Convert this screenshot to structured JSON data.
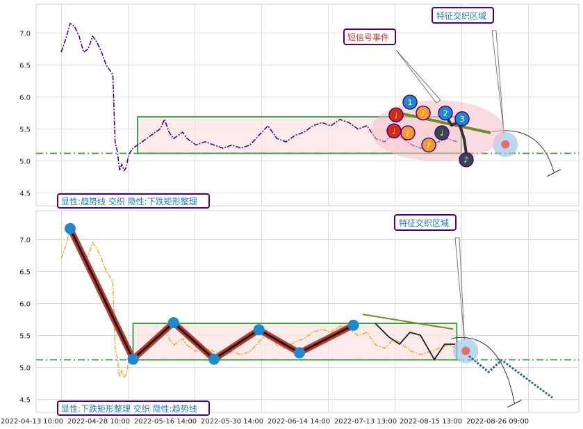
{
  "chart_data": [
    {
      "type": "line",
      "panel": "top",
      "legend_label": "显性:趋势线 交织 隐性:下跌矩形整理",
      "annotations": [
        "特征交织区域",
        "短信号事件"
      ],
      "ylim": [
        4.3,
        7.45
      ],
      "yticks": [
        "7.0",
        "6.5",
        "6.0",
        "5.5",
        "5.0",
        "4.5"
      ],
      "grid": true,
      "support_level": 5.12,
      "rectangle": {
        "x0": 0.17,
        "x1": 0.89,
        "y0": 5.12,
        "y1": 5.69
      },
      "series": [
        {
          "color": "#4b0082",
          "style": "dash-dot",
          "x": [
            0.0,
            0.01,
            0.02,
            0.03,
            0.04,
            0.05,
            0.06,
            0.07,
            0.08,
            0.09,
            0.1,
            0.11,
            0.115,
            0.12,
            0.125,
            0.13,
            0.135,
            0.14,
            0.145,
            0.15,
            0.16,
            0.17,
            0.18,
            0.19,
            0.2,
            0.21,
            0.22,
            0.23,
            0.24,
            0.25,
            0.26,
            0.27,
            0.28,
            0.29,
            0.3,
            0.32,
            0.34,
            0.36,
            0.38,
            0.4,
            0.42,
            0.44,
            0.46,
            0.48,
            0.5,
            0.52,
            0.54,
            0.56,
            0.58,
            0.6,
            0.62,
            0.64,
            0.66,
            0.68,
            0.7,
            0.72,
            0.74,
            0.76,
            0.78,
            0.8,
            0.82,
            0.84,
            0.86,
            0.88
          ],
          "y": [
            6.7,
            6.9,
            7.15,
            7.1,
            6.95,
            6.7,
            6.75,
            6.95,
            6.85,
            6.7,
            6.5,
            6.4,
            6.35,
            5.3,
            5.15,
            4.85,
            4.95,
            4.85,
            4.9,
            5.1,
            5.2,
            5.25,
            5.3,
            5.35,
            5.4,
            5.45,
            5.5,
            5.65,
            5.45,
            5.35,
            5.4,
            5.45,
            5.35,
            5.3,
            5.25,
            5.3,
            5.25,
            5.2,
            5.25,
            5.2,
            5.25,
            5.4,
            5.55,
            5.35,
            5.3,
            5.4,
            5.45,
            5.55,
            5.6,
            5.55,
            5.65,
            5.6,
            5.5,
            5.55,
            5.35,
            5.3,
            5.45,
            5.35,
            5.25,
            5.2,
            5.25,
            5.3,
            5.35,
            5.3
          ]
        }
      ],
      "events": [
        {
          "symbol": "♩",
          "color": "#d62a10",
          "y": 5.72
        },
        {
          "symbol": "1",
          "color": "#1e88d0",
          "y": 5.92
        },
        {
          "symbol": "♪",
          "color": "#f59a2b",
          "y": 5.75
        },
        {
          "symbol": "2",
          "color": "#1e88d0",
          "y": 5.75
        },
        {
          "symbol": "3",
          "color": "#1e88d0",
          "y": 5.66
        },
        {
          "symbol": "♩",
          "color": "#d62a10",
          "y": 5.47
        },
        {
          "symbol": "♪",
          "color": "#f59a2b",
          "y": 5.44
        },
        {
          "symbol": "♪",
          "color": "#f59a2b",
          "y": 5.25
        },
        {
          "symbol": "♩",
          "color": "#37474f",
          "y": 5.44
        },
        {
          "symbol": "♪",
          "color": "#37474f",
          "y": 5.02
        }
      ]
    },
    {
      "type": "line",
      "panel": "bottom",
      "legend_label": "显性:下跌矩形整理 交织 隐性:趋势线",
      "annotations": [
        "特征交织区域"
      ],
      "ylim": [
        4.3,
        7.45
      ],
      "yticks": [
        "7.0",
        "6.5",
        "6.0",
        "5.5",
        "5.0",
        "4.5"
      ],
      "grid": true,
      "support_level": 5.12,
      "rectangle": {
        "x0": 0.16,
        "x1": 0.88,
        "y0": 5.12,
        "y1": 5.69
      },
      "x_tick_labels": [
        "2022-04-13 10:00",
        "2022-04-28 10:00",
        "2022-05-16 14:00",
        "2022-05-30 14:00",
        "2022-06-14 14:00",
        "2022-07-13 13:00",
        "2022-08-15 13:00",
        "2022-08-26 09:00"
      ],
      "zigzag": {
        "x": [
          0.02,
          0.16,
          0.25,
          0.34,
          0.44,
          0.53,
          0.65
        ],
        "y": [
          7.17,
          5.13,
          5.7,
          5.13,
          5.59,
          5.23,
          5.66
        ]
      },
      "series": [
        {
          "color": "#e8b030",
          "style": "dash-dot",
          "x": [
            0.0,
            0.01,
            0.02,
            0.03,
            0.04,
            0.05,
            0.06,
            0.07,
            0.08,
            0.09,
            0.1,
            0.11,
            0.115,
            0.12,
            0.125,
            0.13,
            0.135,
            0.14,
            0.145,
            0.15,
            0.16,
            0.17,
            0.18,
            0.19,
            0.2,
            0.21,
            0.22,
            0.23,
            0.24,
            0.25,
            0.26,
            0.27,
            0.28,
            0.29,
            0.3,
            0.32,
            0.34,
            0.36,
            0.38,
            0.4,
            0.42,
            0.44,
            0.46,
            0.48,
            0.5,
            0.52,
            0.54,
            0.56,
            0.58,
            0.6,
            0.62,
            0.64,
            0.66,
            0.68,
            0.7,
            0.72,
            0.74,
            0.76,
            0.78,
            0.8,
            0.82,
            0.84,
            0.86,
            0.88
          ],
          "y": [
            6.7,
            6.9,
            7.15,
            7.1,
            6.95,
            6.7,
            6.75,
            6.95,
            6.85,
            6.7,
            6.5,
            6.4,
            6.35,
            5.3,
            5.15,
            4.85,
            4.95,
            4.85,
            4.9,
            5.1,
            5.2,
            5.25,
            5.3,
            5.35,
            5.4,
            5.45,
            5.5,
            5.65,
            5.45,
            5.35,
            5.4,
            5.45,
            5.35,
            5.3,
            5.25,
            5.3,
            5.25,
            5.2,
            5.25,
            5.2,
            5.25,
            5.4,
            5.55,
            5.35,
            5.3,
            5.4,
            5.45,
            5.55,
            5.6,
            5.55,
            5.65,
            5.6,
            5.5,
            5.55,
            5.35,
            5.3,
            5.45,
            5.35,
            5.25,
            5.2,
            5.25,
            5.3,
            5.35,
            5.3
          ]
        }
      ]
    }
  ],
  "colors": {
    "rect_fill": "#fbe4e4",
    "rect_stroke": "#2e9a3a",
    "support": "#2e9a3a",
    "trend": "#6b8e23",
    "zigzag": "#c0392b",
    "node": "#1e88d0",
    "label_border": "#4b0082",
    "label_text": "#1f7bbf",
    "event_label_text": "#c0392b"
  }
}
